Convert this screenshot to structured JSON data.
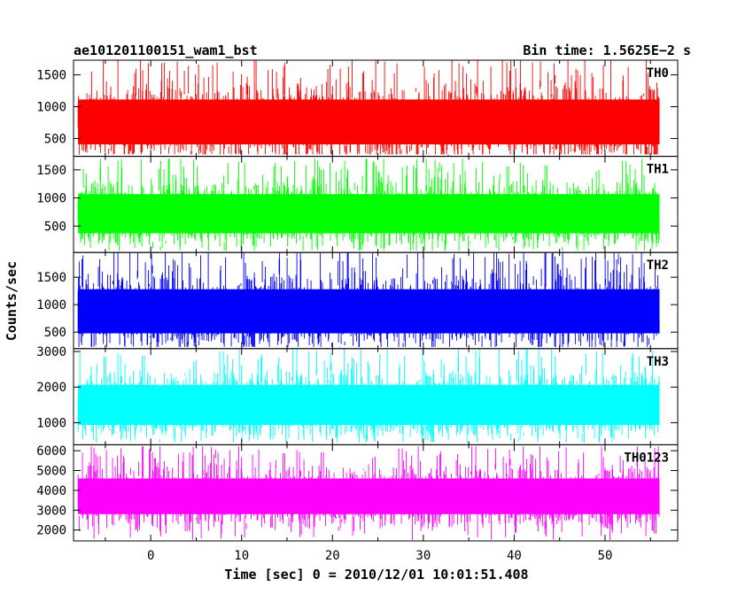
{
  "header": {
    "title": "ae101201100151_wam1_bst",
    "bin_time": "Bin time: 1.5625E−2 s"
  },
  "chart_data": {
    "type": "line",
    "title": "ae101201100151_wam1_bst",
    "subtitle": "Bin time: 1.5625E−2 s",
    "xlabel": "Time [sec] 0 = 2010/12/01 10:01:51.408",
    "ylabel": "Counts/sec",
    "xlim": [
      -8.5,
      58
    ],
    "data_range_x": [
      -8,
      56
    ],
    "x_ticks": [
      0,
      10,
      20,
      30,
      40,
      50
    ],
    "x_tick_labels": [
      "0",
      "10",
      "20",
      "30",
      "40",
      "50"
    ],
    "grid": false,
    "panels": [
      {
        "name": "TH0",
        "color": "#ff0000",
        "ylim": [
          220,
          1730
        ],
        "y_ticks": [
          500,
          1000,
          1500
        ],
        "y_tick_labels": [
          "500",
          "1000",
          "1500"
        ],
        "mean": 760,
        "typical_range": [
          250,
          1700
        ]
      },
      {
        "name": "TH1",
        "color": "#00ff00",
        "ylim": [
          30,
          1740
        ],
        "y_ticks": [
          500,
          1000,
          1500
        ],
        "y_tick_labels": [
          "500",
          "1000",
          "1500"
        ],
        "mean": 720,
        "typical_range": [
          60,
          1650
        ]
      },
      {
        "name": "TH2",
        "color": "#0000ff",
        "ylim": [
          200,
          1950
        ],
        "y_ticks": [
          500,
          1000,
          1500
        ],
        "y_tick_labels": [
          "500",
          "1000",
          "1500"
        ],
        "mean": 880,
        "typical_range": [
          230,
          1950
        ]
      },
      {
        "name": "TH3",
        "color": "#00ffff",
        "ylim": [
          380,
          3080
        ],
        "y_ticks": [
          1000,
          2000,
          3000
        ],
        "y_tick_labels": [
          "1000",
          "2000",
          "3000"
        ],
        "mean": 1500,
        "typical_range": [
          450,
          3000
        ]
      },
      {
        "name": "TH0123",
        "color": "#ff00ff",
        "ylim": [
          1450,
          6300
        ],
        "y_ticks": [
          2000,
          3000,
          4000,
          5000,
          6000
        ],
        "y_tick_labels": [
          "2000",
          "3000",
          "4000",
          "5000",
          "6000"
        ],
        "mean": 3700,
        "typical_range": [
          1500,
          6100
        ]
      }
    ]
  }
}
